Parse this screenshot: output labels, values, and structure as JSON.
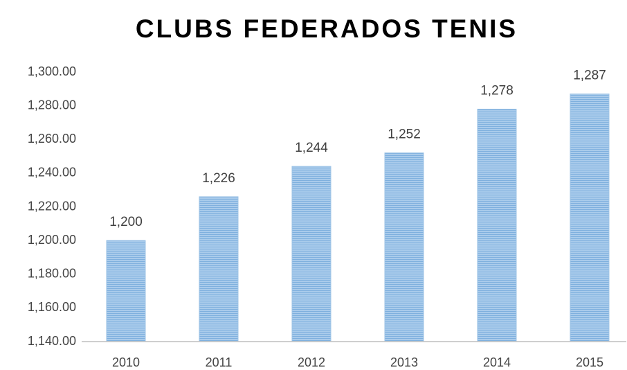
{
  "chart_data": {
    "type": "bar",
    "title": "CLUBS FEDERADOS TENIS",
    "categories": [
      "2010",
      "2011",
      "2012",
      "2013",
      "2014",
      "2015"
    ],
    "values": [
      1200,
      1226,
      1244,
      1252,
      1278,
      1287
    ],
    "value_labels": [
      "1,200",
      "1,226",
      "1,244",
      "1,252",
      "1,278",
      "1,287"
    ],
    "color": "#9dc3e6",
    "ylim": [
      1140,
      1300
    ],
    "yticks": [
      {
        "value": 1140,
        "label": "1,140.00"
      },
      {
        "value": 1160,
        "label": "1,160.00"
      },
      {
        "value": 1180,
        "label": "1,180.00"
      },
      {
        "value": 1200,
        "label": "1,200.00"
      },
      {
        "value": 1220,
        "label": "1,220.00"
      },
      {
        "value": 1240,
        "label": "1,240.00"
      },
      {
        "value": 1260,
        "label": "1,260.00"
      },
      {
        "value": 1280,
        "label": "1,280.00"
      },
      {
        "value": 1300,
        "label": "1,300.00"
      }
    ],
    "grid": false
  }
}
